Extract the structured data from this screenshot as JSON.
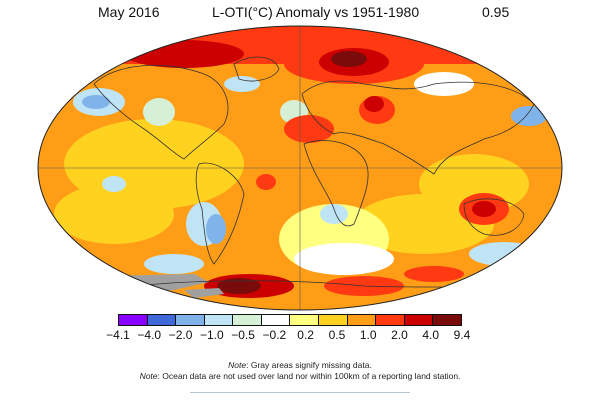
{
  "header": {
    "date": "May 2016",
    "title": "L-OTI(°C) Anomaly vs 1951-1980",
    "global_mean": "0.95"
  },
  "legend": {
    "colors": [
      "#8a00ff",
      "#3f69d6",
      "#7fb3ea",
      "#bfe4f6",
      "#d6f0d6",
      "#ffffff",
      "#ffff80",
      "#ffd21f",
      "#ff9d16",
      "#ff3a12",
      "#cc0000",
      "#7a0b0b"
    ],
    "ticks": [
      "−4.1",
      "−4.0",
      "−2.0",
      "−1.0",
      "−0.5",
      "−0.2",
      "0.2",
      "0.5",
      "1.0",
      "2.0",
      "4.0",
      "9.4"
    ]
  },
  "notes": [
    {
      "label": "Note",
      "text": ": Gray areas signify missing data."
    },
    {
      "label": "Note",
      "text": ": Ocean data are not used over land nor within 100km of a reporting land station."
    }
  ]
}
